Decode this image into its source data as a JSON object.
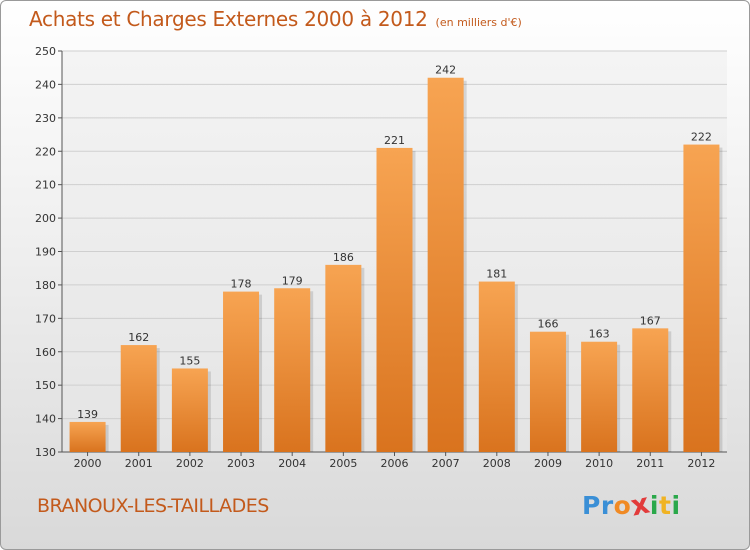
{
  "header": {
    "title": "Achats et Charges Externes 2000 à 2012",
    "unit": "(en milliers d'€)"
  },
  "footer": {
    "place": "BRANOUX-LES-TAILLADES"
  },
  "brand": {
    "name": "Proxiti",
    "letters": [
      {
        "ch": "P",
        "color": "#3a8fd6"
      },
      {
        "ch": "r",
        "color": "#3a8fd6"
      },
      {
        "ch": "o",
        "color": "#f08a24"
      },
      {
        "ch": "x",
        "color": "#e23b3b"
      },
      {
        "ch": "i",
        "color": "#2aa84a"
      },
      {
        "ch": "t",
        "color": "#f0b323"
      },
      {
        "ch": "i",
        "color": "#2aa84a"
      }
    ]
  },
  "chart_data": {
    "type": "bar",
    "categories": [
      "2000",
      "2001",
      "2002",
      "2003",
      "2004",
      "2005",
      "2006",
      "2007",
      "2008",
      "2009",
      "2010",
      "2011",
      "2012"
    ],
    "values": [
      139,
      162,
      155,
      178,
      179,
      186,
      221,
      242,
      181,
      166,
      163,
      167,
      222
    ],
    "ylim": [
      130,
      250
    ],
    "yticks": [
      130,
      140,
      150,
      160,
      170,
      180,
      190,
      200,
      210,
      220,
      230,
      240,
      250
    ],
    "grid": true,
    "bar_color_light": "#f7a452",
    "bar_color_dark": "#d9731e",
    "text_color": "#c35a1c"
  }
}
